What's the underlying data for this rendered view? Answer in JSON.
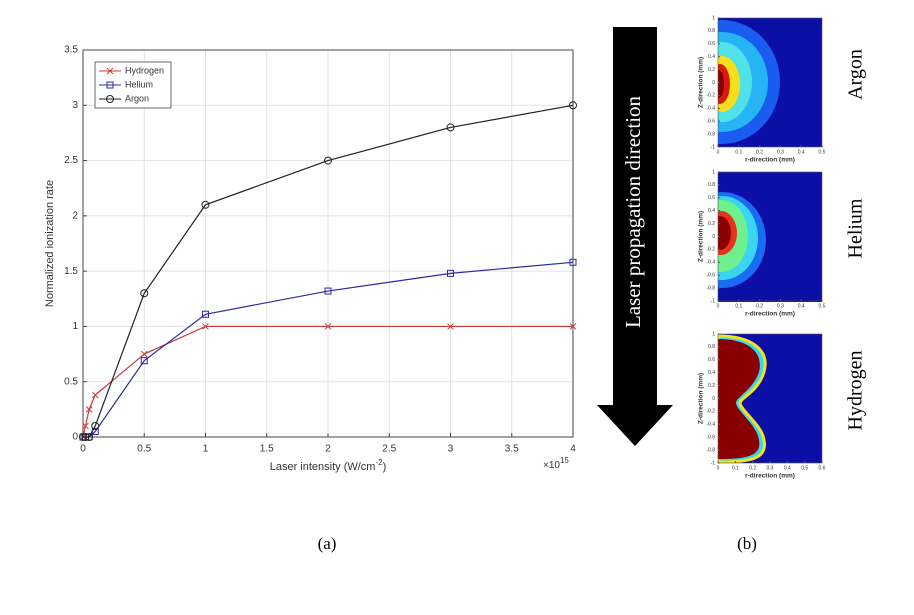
{
  "chart_data": [
    {
      "type": "line",
      "xlabel": "Laser intensity (W/cm",
      "xlabel_sup": "-2",
      "xlabel_tail": ")",
      "ylabel": "Normalized ionization rate",
      "x_multiplier": "×10",
      "x_multiplier_exp": "15",
      "x": [
        0,
        0.02,
        0.05,
        0.1,
        0.5,
        1,
        2,
        3,
        4
      ],
      "series": [
        {
          "name": "Hydrogen",
          "color": "#c83c3c",
          "marker": "x",
          "values": [
            0,
            0.1,
            0.25,
            0.38,
            0.75,
            1,
            1,
            1,
            1
          ]
        },
        {
          "name": "Helium",
          "color": "#2a2aa8",
          "marker": "s",
          "values": [
            0,
            0,
            0,
            0.05,
            0.69,
            1.11,
            1.32,
            1.48,
            1.58
          ]
        },
        {
          "name": "Argon",
          "color": "#222222",
          "marker": "o",
          "values": [
            0,
            0,
            0,
            0.1,
            1.3,
            2.1,
            2.5,
            2.8,
            3.0
          ]
        }
      ],
      "xlim": [
        0,
        4
      ],
      "xticks": [
        0,
        0.5,
        1,
        1.5,
        2,
        2.5,
        3,
        3.5,
        4
      ],
      "ylim": [
        0,
        3.5
      ],
      "yticks": [
        0,
        0.5,
        1,
        1.5,
        2,
        2.5,
        3,
        3.5
      ],
      "grid": true,
      "legend": "upper left"
    },
    {
      "type": "heatmap",
      "title": "Argon",
      "xlabel": "r-direction (mm)",
      "ylabel": "Z-direction (mm)",
      "xlim": [
        0,
        0.5
      ],
      "xticks": [
        0,
        0.1,
        0.2,
        0.3,
        0.4,
        0.5
      ],
      "ylim": [
        -1,
        1
      ],
      "yticks": [
        1,
        0.8,
        0.6,
        0.4,
        0.2,
        0,
        -0.2,
        -0.4,
        -0.6,
        -0.8,
        -1
      ]
    },
    {
      "type": "heatmap",
      "title": "Helium",
      "xlabel": "r-direction (mm)",
      "ylabel": "Z-direction (mm)",
      "xlim": [
        0,
        0.5
      ],
      "xticks": [
        0,
        0.1,
        0.2,
        0.3,
        0.4,
        0.5
      ],
      "ylim": [
        -1,
        1
      ],
      "yticks": [
        1,
        0.8,
        0.6,
        0.4,
        0.2,
        0,
        -0.2,
        -0.4,
        -0.6,
        -0.8,
        -1
      ]
    },
    {
      "type": "heatmap",
      "title": "Hydrogen",
      "xlabel": "r-direction (mm)",
      "ylabel": "Z-direction (mm)",
      "xlim": [
        0,
        0.6
      ],
      "xticks": [
        0,
        0.1,
        0.2,
        0.3,
        0.4,
        0.5,
        0.6
      ],
      "ylim": [
        -1,
        1
      ],
      "yticks": [
        1,
        0.8,
        0.6,
        0.4,
        0.2,
        0,
        -0.2,
        -0.4,
        -0.6,
        -0.8,
        -1
      ]
    }
  ],
  "figure": {
    "arrow_label": "Laser propagation direction",
    "panel_labels": [
      "(a)",
      "(b)"
    ]
  }
}
